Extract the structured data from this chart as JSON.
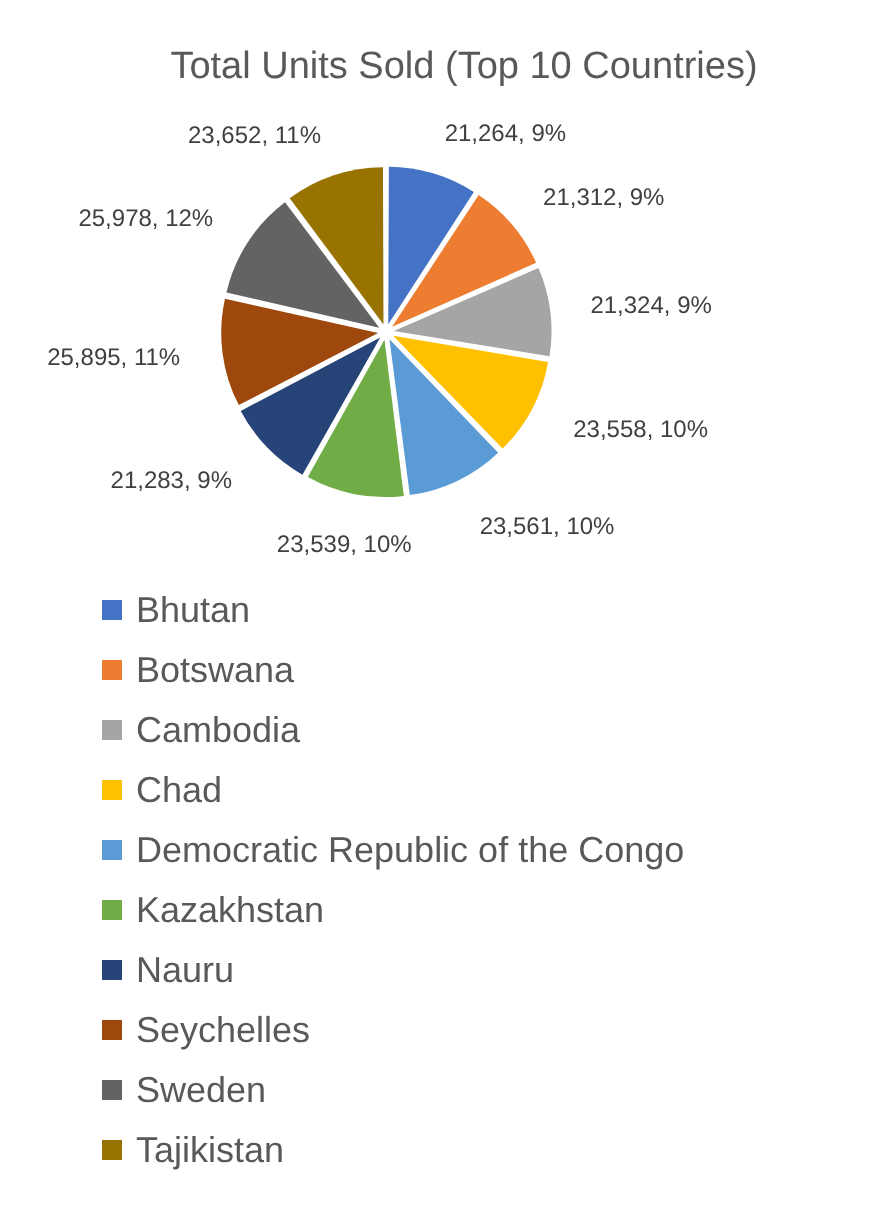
{
  "chart_data": {
    "type": "pie",
    "title": "Total Units Sold (Top 10 Countries)",
    "categories": [
      "Bhutan",
      "Botswana",
      "Cambodia",
      "Chad",
      "Democratic Republic of the Congo",
      "Kazakhstan",
      "Nauru",
      "Seychelles",
      "Sweden",
      "Tajikistan"
    ],
    "values": [
      21264,
      21312,
      21324,
      23558,
      23561,
      23539,
      21283,
      25895,
      25978,
      23652
    ],
    "value_labels": [
      "21,264, 9%",
      "21,312, 9%",
      "21,324, 9%",
      "23,558, 10%",
      "23,561, 10%",
      "23,539, 10%",
      "21,283, 9%",
      "25,895, 11%",
      "25,978, 12%",
      "23,652, 11%"
    ],
    "colors": [
      "#4472c4",
      "#ed7d31",
      "#a5a5a5",
      "#ffc000",
      "#5b9bd5",
      "#70ad47",
      "#264478",
      "#9e480e",
      "#636363",
      "#997300"
    ],
    "legend": "bottom"
  }
}
